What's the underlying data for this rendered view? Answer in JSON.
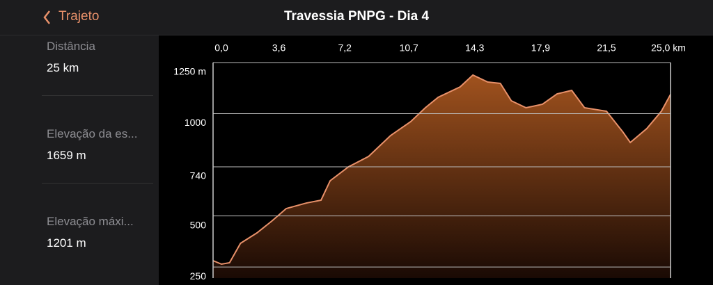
{
  "header": {
    "back": "Trajeto",
    "title": "Travessia PNPG - Dia 4"
  },
  "sidebar": {
    "items": [
      {
        "label": "Distância",
        "value": "25 km"
      },
      {
        "label": "Elevação da es...",
        "value": "1659 m"
      },
      {
        "label": "Elevação máxi...",
        "value": "1201 m"
      }
    ]
  },
  "chart_data": {
    "type": "area",
    "color": "#e8916a",
    "grid": true,
    "x": [
      0,
      0.46,
      0.9,
      1.5,
      2.4,
      3.2,
      4.0,
      5.1,
      5.9,
      6.4,
      7.4,
      8.5,
      9.7,
      10.8,
      11.6,
      12.3,
      13.5,
      14.2,
      15.0,
      15.7,
      16.3,
      17.1,
      18.0,
      18.8,
      19.6,
      20.3,
      21.5,
      22.4,
      22.8,
      23.7,
      24.5,
      25
    ],
    "values": [
      281,
      264,
      271,
      366,
      417,
      474,
      536,
      563,
      577,
      672,
      740,
      791,
      893,
      961,
      1029,
      1080,
      1131,
      1189,
      1155,
      1148,
      1063,
      1029,
      1046,
      1097,
      1114,
      1029,
      1012,
      910,
      859,
      927,
      1012,
      1094
    ],
    "xlim": [
      0,
      25
    ],
    "xticks": [
      {
        "value": 0,
        "label": "0,0"
      },
      {
        "value": 3.6,
        "label": "3,6"
      },
      {
        "value": 7.2,
        "label": "7,2"
      },
      {
        "value": 10.7,
        "label": "10,7"
      },
      {
        "value": 14.3,
        "label": "14,3"
      },
      {
        "value": 17.9,
        "label": "17,9"
      },
      {
        "value": 21.5,
        "label": "21,5"
      },
      {
        "value": 25,
        "label": "25,0 km"
      }
    ],
    "ylim": [
      196,
      1250
    ],
    "yticks": [
      {
        "value": 1250,
        "label": "1250 m"
      },
      1000,
      740,
      500,
      250
    ]
  }
}
